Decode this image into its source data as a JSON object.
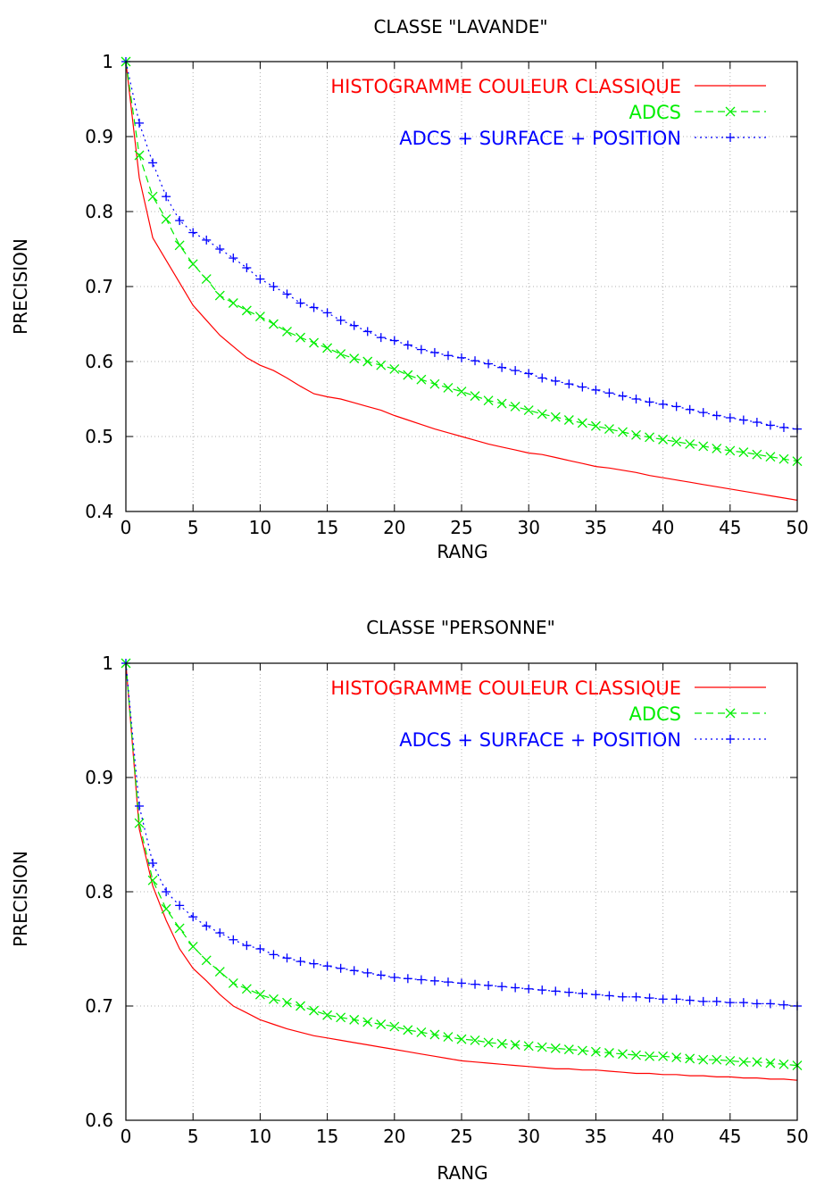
{
  "chart_data": [
    {
      "type": "line",
      "title": "CLASSE \"LAVANDE\"",
      "xlabel": "RANG",
      "ylabel": "PRECISION",
      "xlim": [
        0,
        50
      ],
      "ylim": [
        0.4,
        1.0
      ],
      "xticks": [
        "0",
        "5",
        "10",
        "15",
        "20",
        "25",
        "30",
        "35",
        "40",
        "45",
        "50"
      ],
      "yticks": [
        "0.4",
        "0.5",
        "0.6",
        "0.7",
        "0.8",
        "0.9",
        "1"
      ],
      "grid": true,
      "legend_position": "top-right",
      "series": [
        {
          "name": "HISTOGRAMME COULEUR CLASSIQUE",
          "color": "#ff0000",
          "style": "solid",
          "marker": "none",
          "values": [
            1.0,
            0.845,
            0.765,
            0.735,
            0.705,
            0.675,
            0.655,
            0.635,
            0.62,
            0.605,
            0.595,
            0.588,
            0.578,
            0.567,
            0.557,
            0.553,
            0.55,
            0.545,
            0.54,
            0.535,
            0.528,
            0.522,
            0.516,
            0.51,
            0.505,
            0.5,
            0.495,
            0.49,
            0.486,
            0.482,
            0.478,
            0.476,
            0.472,
            0.468,
            0.464,
            0.46,
            0.458,
            0.455,
            0.452,
            0.448,
            0.445,
            0.442,
            0.439,
            0.436,
            0.433,
            0.43,
            0.427,
            0.424,
            0.421,
            0.418,
            0.415
          ]
        },
        {
          "name": "ADCS",
          "color": "#00ee00",
          "style": "dashed",
          "marker": "x",
          "values": [
            1.0,
            0.875,
            0.82,
            0.79,
            0.755,
            0.73,
            0.71,
            0.688,
            0.678,
            0.668,
            0.66,
            0.65,
            0.64,
            0.632,
            0.625,
            0.618,
            0.61,
            0.604,
            0.6,
            0.595,
            0.59,
            0.582,
            0.576,
            0.57,
            0.565,
            0.56,
            0.554,
            0.548,
            0.544,
            0.54,
            0.535,
            0.53,
            0.526,
            0.522,
            0.518,
            0.514,
            0.51,
            0.506,
            0.502,
            0.499,
            0.496,
            0.493,
            0.49,
            0.487,
            0.484,
            0.481,
            0.479,
            0.476,
            0.473,
            0.47,
            0.467
          ]
        },
        {
          "name": "ADCS + SURFACE + POSITION",
          "color": "#0000ff",
          "style": "dotted",
          "marker": "+",
          "values": [
            1.0,
            0.918,
            0.865,
            0.82,
            0.788,
            0.772,
            0.762,
            0.75,
            0.738,
            0.725,
            0.71,
            0.7,
            0.69,
            0.678,
            0.672,
            0.665,
            0.655,
            0.648,
            0.64,
            0.632,
            0.628,
            0.622,
            0.616,
            0.612,
            0.608,
            0.605,
            0.601,
            0.597,
            0.592,
            0.588,
            0.584,
            0.578,
            0.574,
            0.57,
            0.566,
            0.562,
            0.558,
            0.554,
            0.55,
            0.546,
            0.543,
            0.54,
            0.536,
            0.532,
            0.528,
            0.525,
            0.522,
            0.519,
            0.515,
            0.512,
            0.51
          ]
        }
      ]
    },
    {
      "type": "line",
      "title": "CLASSE \"PERSONNE\"",
      "xlabel": "RANG",
      "ylabel": "PRECISION",
      "xlim": [
        0,
        50
      ],
      "ylim": [
        0.6,
        1.0
      ],
      "xticks": [
        "0",
        "5",
        "10",
        "15",
        "20",
        "25",
        "30",
        "35",
        "40",
        "45",
        "50"
      ],
      "yticks": [
        "0.6",
        "0.7",
        "0.8",
        "0.9",
        "1"
      ],
      "grid": true,
      "legend_position": "top-right",
      "series": [
        {
          "name": "HISTOGRAMME COULEUR CLASSIQUE",
          "color": "#ff0000",
          "style": "solid",
          "marker": "none",
          "values": [
            1.0,
            0.855,
            0.805,
            0.775,
            0.75,
            0.733,
            0.722,
            0.71,
            0.7,
            0.694,
            0.688,
            0.684,
            0.68,
            0.677,
            0.674,
            0.672,
            0.67,
            0.668,
            0.666,
            0.664,
            0.662,
            0.66,
            0.658,
            0.656,
            0.654,
            0.652,
            0.651,
            0.65,
            0.649,
            0.648,
            0.647,
            0.646,
            0.645,
            0.645,
            0.644,
            0.644,
            0.643,
            0.642,
            0.641,
            0.641,
            0.64,
            0.64,
            0.639,
            0.639,
            0.638,
            0.638,
            0.637,
            0.637,
            0.636,
            0.636,
            0.635
          ]
        },
        {
          "name": "ADCS",
          "color": "#00ee00",
          "style": "dashed",
          "marker": "x",
          "values": [
            1.0,
            0.86,
            0.81,
            0.785,
            0.768,
            0.752,
            0.74,
            0.73,
            0.72,
            0.715,
            0.71,
            0.706,
            0.703,
            0.7,
            0.696,
            0.692,
            0.69,
            0.688,
            0.686,
            0.684,
            0.682,
            0.679,
            0.677,
            0.675,
            0.673,
            0.671,
            0.67,
            0.668,
            0.667,
            0.666,
            0.665,
            0.664,
            0.663,
            0.662,
            0.661,
            0.66,
            0.659,
            0.658,
            0.657,
            0.656,
            0.656,
            0.655,
            0.654,
            0.653,
            0.653,
            0.652,
            0.651,
            0.651,
            0.65,
            0.649,
            0.648
          ]
        },
        {
          "name": "ADCS + SURFACE + POSITION",
          "color": "#0000ff",
          "style": "dotted",
          "marker": "+",
          "values": [
            1.0,
            0.875,
            0.825,
            0.8,
            0.788,
            0.778,
            0.77,
            0.764,
            0.758,
            0.753,
            0.75,
            0.745,
            0.742,
            0.739,
            0.737,
            0.735,
            0.733,
            0.731,
            0.729,
            0.727,
            0.725,
            0.724,
            0.723,
            0.722,
            0.721,
            0.72,
            0.719,
            0.718,
            0.717,
            0.716,
            0.715,
            0.714,
            0.713,
            0.712,
            0.711,
            0.71,
            0.709,
            0.708,
            0.708,
            0.707,
            0.706,
            0.706,
            0.705,
            0.704,
            0.704,
            0.703,
            0.703,
            0.702,
            0.702,
            0.701,
            0.7
          ]
        }
      ]
    }
  ]
}
